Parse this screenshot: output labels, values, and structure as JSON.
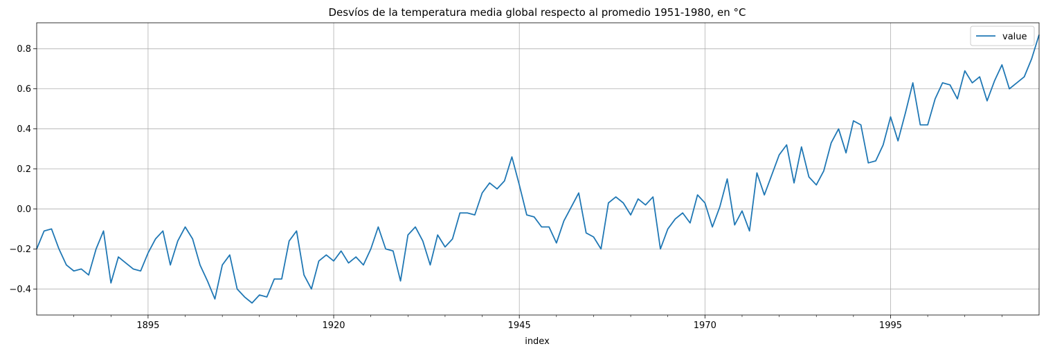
{
  "chart_data": {
    "type": "line",
    "title": "Desvíos de la temperatura media global respecto al promedio 1951-1980, en °C",
    "xlabel": "index",
    "ylabel": "",
    "xlim": [
      1880,
      2015
    ],
    "ylim": [
      -0.53,
      0.93
    ],
    "x_major_ticks": [
      1895,
      1920,
      1945,
      1970,
      1995
    ],
    "x_minor_ticks": [
      1885,
      1890,
      1900,
      1905,
      1910,
      1915,
      1925,
      1930,
      1935,
      1940,
      1950,
      1955,
      1960,
      1965,
      1975,
      1980,
      1985,
      1990,
      2000,
      2005,
      2010
    ],
    "y_ticks": [
      -0.4,
      -0.2,
      0.0,
      0.2,
      0.4,
      0.6,
      0.8
    ],
    "y_tick_labels": [
      "−0.4",
      "−0.2",
      "0.0",
      "0.2",
      "0.4",
      "0.6",
      "0.8"
    ],
    "grid": true,
    "legend_position": "top-right",
    "series": [
      {
        "name": "value",
        "color": "#1f77b4",
        "x": [
          1880,
          1881,
          1882,
          1883,
          1884,
          1885,
          1886,
          1887,
          1888,
          1889,
          1890,
          1891,
          1892,
          1893,
          1894,
          1895,
          1896,
          1897,
          1898,
          1899,
          1900,
          1901,
          1902,
          1903,
          1904,
          1905,
          1906,
          1907,
          1908,
          1909,
          1910,
          1911,
          1912,
          1913,
          1914,
          1915,
          1916,
          1917,
          1918,
          1919,
          1920,
          1921,
          1922,
          1923,
          1924,
          1925,
          1926,
          1927,
          1928,
          1929,
          1930,
          1931,
          1932,
          1933,
          1934,
          1935,
          1936,
          1937,
          1938,
          1939,
          1940,
          1941,
          1942,
          1943,
          1944,
          1945,
          1946,
          1947,
          1948,
          1949,
          1950,
          1951,
          1952,
          1953,
          1954,
          1955,
          1956,
          1957,
          1958,
          1959,
          1960,
          1961,
          1962,
          1963,
          1964,
          1965,
          1966,
          1967,
          1968,
          1969,
          1970,
          1971,
          1972,
          1973,
          1974,
          1975,
          1976,
          1977,
          1978,
          1979,
          1980,
          1981,
          1982,
          1983,
          1984,
          1985,
          1986,
          1987,
          1988,
          1989,
          1990,
          1991,
          1992,
          1993,
          1994,
          1995,
          1996,
          1997,
          1998,
          1999,
          2000,
          2001,
          2002,
          2003,
          2004,
          2005,
          2006,
          2007,
          2008,
          2009,
          2010,
          2011,
          2012,
          2013,
          2014,
          2015
        ],
        "values": [
          -0.2,
          -0.11,
          -0.1,
          -0.2,
          -0.28,
          -0.31,
          -0.3,
          -0.33,
          -0.2,
          -0.11,
          -0.37,
          -0.24,
          -0.27,
          -0.3,
          -0.31,
          -0.22,
          -0.15,
          -0.11,
          -0.28,
          -0.16,
          -0.09,
          -0.15,
          -0.28,
          -0.36,
          -0.45,
          -0.28,
          -0.23,
          -0.4,
          -0.44,
          -0.47,
          -0.43,
          -0.44,
          -0.35,
          -0.35,
          -0.16,
          -0.11,
          -0.33,
          -0.4,
          -0.26,
          -0.23,
          -0.26,
          -0.21,
          -0.27,
          -0.24,
          -0.28,
          -0.2,
          -0.09,
          -0.2,
          -0.21,
          -0.36,
          -0.13,
          -0.09,
          -0.16,
          -0.28,
          -0.13,
          -0.19,
          -0.15,
          -0.02,
          -0.02,
          -0.03,
          0.08,
          0.13,
          0.1,
          0.14,
          0.26,
          0.12,
          -0.03,
          -0.04,
          -0.09,
          -0.09,
          -0.17,
          -0.06,
          0.01,
          0.08,
          -0.12,
          -0.14,
          -0.2,
          0.03,
          0.06,
          0.03,
          -0.03,
          0.05,
          0.02,
          0.06,
          -0.2,
          -0.1,
          -0.05,
          -0.02,
          -0.07,
          0.07,
          0.03,
          -0.09,
          0.01,
          0.15,
          -0.08,
          -0.01,
          -0.11,
          0.18,
          0.07,
          0.17,
          0.27,
          0.32,
          0.13,
          0.31,
          0.16,
          0.12,
          0.19,
          0.33,
          0.4,
          0.28,
          0.44,
          0.42,
          0.23,
          0.24,
          0.32,
          0.46,
          0.34,
          0.48,
          0.63,
          0.42,
          0.42,
          0.55,
          0.63,
          0.62,
          0.55,
          0.69,
          0.63,
          0.66,
          0.54,
          0.64,
          0.72,
          0.6,
          0.63,
          0.66,
          0.75,
          0.87
        ]
      }
    ]
  }
}
